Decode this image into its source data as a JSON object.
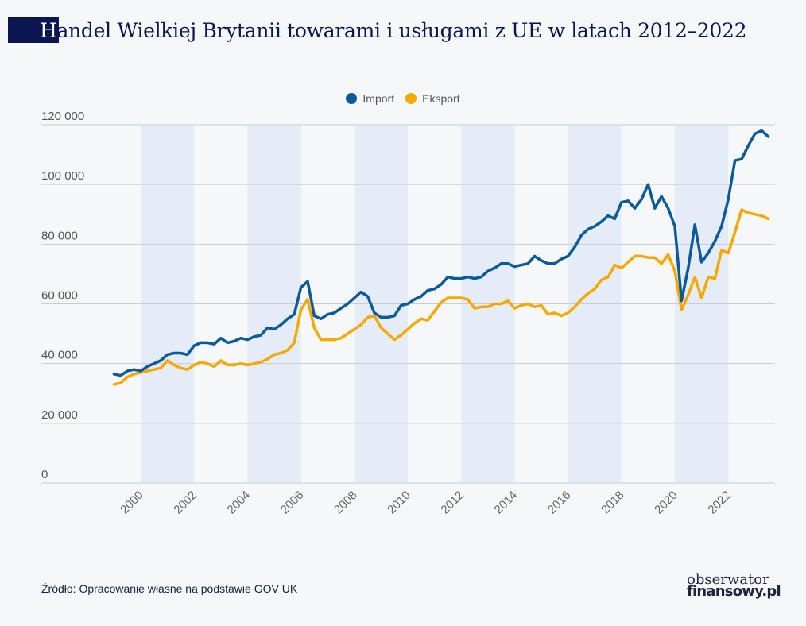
{
  "title": {
    "first_letter": "H",
    "rest": "andel Wielkiej Brytanii towarami i usługami z UE w latach 2012–2022"
  },
  "footer": {
    "source": "Źródło: Opracowanie własne na podstawie GOV UK"
  },
  "logo": {
    "line1": "obserwator",
    "line2": "finansowy.pl"
  },
  "chart_data": {
    "type": "line",
    "title": "",
    "xlabel": "",
    "ylabel": "",
    "ylim": [
      0,
      120000
    ],
    "xlim": [
      1999,
      2023.5
    ],
    "grid": true,
    "legend": "top-center",
    "yticks": [
      0,
      20000,
      40000,
      60000,
      80000,
      100000,
      120000
    ],
    "ytick_labels": [
      "0",
      "20 000",
      "40 000",
      "60 000",
      "80 000",
      "100 000",
      "120 000"
    ],
    "xticks": [
      2000,
      2002,
      2004,
      2006,
      2008,
      2010,
      2012,
      2014,
      2016,
      2018,
      2020,
      2022
    ],
    "xtick_labels": [
      "2000",
      "2002",
      "2004",
      "2006",
      "2008",
      "2010",
      "2012",
      "2014",
      "2016",
      "2018",
      "2020",
      "2022"
    ],
    "shaded_bands": [
      [
        2000,
        2002
      ],
      [
        2004,
        2006
      ],
      [
        2008,
        2010
      ],
      [
        2012,
        2014
      ],
      [
        2016,
        2018
      ],
      [
        2020,
        2022
      ]
    ],
    "x": [
      1999.0,
      1999.25,
      1999.5,
      1999.75,
      2000.0,
      2000.25,
      2000.5,
      2000.75,
      2001.0,
      2001.25,
      2001.5,
      2001.75,
      2002.0,
      2002.25,
      2002.5,
      2002.75,
      2003.0,
      2003.25,
      2003.5,
      2003.75,
      2004.0,
      2004.25,
      2004.5,
      2004.75,
      2005.0,
      2005.25,
      2005.5,
      2005.75,
      2006.0,
      2006.25,
      2006.5,
      2006.75,
      2007.0,
      2007.25,
      2007.5,
      2007.75,
      2008.0,
      2008.25,
      2008.5,
      2008.75,
      2009.0,
      2009.25,
      2009.5,
      2009.75,
      2010.0,
      2010.25,
      2010.5,
      2010.75,
      2011.0,
      2011.25,
      2011.5,
      2011.75,
      2012.0,
      2012.25,
      2012.5,
      2012.75,
      2013.0,
      2013.25,
      2013.5,
      2013.75,
      2014.0,
      2014.25,
      2014.5,
      2014.75,
      2015.0,
      2015.25,
      2015.5,
      2015.75,
      2016.0,
      2016.25,
      2016.5,
      2016.75,
      2017.0,
      2017.25,
      2017.5,
      2017.75,
      2018.0,
      2018.25,
      2018.5,
      2018.75,
      2019.0,
      2019.25,
      2019.5,
      2019.75,
      2020.0,
      2020.25,
      2020.5,
      2020.75,
      2021.0,
      2021.25,
      2021.5,
      2021.75,
      2022.0,
      2022.25,
      2022.5,
      2022.75,
      2023.0,
      2023.25,
      2023.5
    ],
    "series": [
      {
        "name": "Import",
        "color": "#0a5a9c",
        "values": [
          36500,
          36000,
          37500,
          38000,
          37500,
          39000,
          40000,
          41000,
          43000,
          43500,
          43500,
          43000,
          46000,
          47000,
          47000,
          46500,
          48500,
          47000,
          47500,
          48500,
          48000,
          49000,
          49500,
          52000,
          51500,
          53000,
          55000,
          56500,
          65500,
          67500,
          56000,
          55000,
          56500,
          57000,
          58500,
          60000,
          62000,
          64000,
          62500,
          57000,
          55500,
          55500,
          56000,
          59500,
          60000,
          61500,
          62500,
          64500,
          65000,
          66500,
          69000,
          68500,
          68500,
          69000,
          68500,
          69000,
          71000,
          72000,
          73500,
          73500,
          72500,
          73000,
          73500,
          76000,
          74500,
          73500,
          73500,
          75000,
          76000,
          79000,
          83000,
          85000,
          86000,
          87500,
          89500,
          88500,
          94000,
          94500,
          92000,
          95000,
          100000,
          92000,
          96000,
          92000,
          86000,
          61000,
          72000,
          86500,
          74000,
          77000,
          81000,
          86000,
          95000,
          108000,
          108500,
          113000,
          117000,
          118000,
          116000
        ]
      },
      {
        "name": "Eksport",
        "color": "#f5a800",
        "values": [
          33000,
          33500,
          35500,
          36500,
          37000,
          37500,
          38000,
          38500,
          41000,
          39500,
          38500,
          38000,
          39500,
          40500,
          40000,
          39000,
          41000,
          39500,
          39500,
          40000,
          39500,
          40000,
          40500,
          41500,
          43000,
          43500,
          44500,
          47000,
          58000,
          61500,
          52000,
          48000,
          48000,
          48000,
          48500,
          50000,
          51500,
          53000,
          55500,
          56000,
          52000,
          50000,
          48000,
          49500,
          51500,
          53500,
          55000,
          54500,
          57500,
          60500,
          62000,
          62000,
          62000,
          61500,
          58500,
          59000,
          59000,
          60000,
          60000,
          61000,
          58500,
          59500,
          60000,
          59000,
          59500,
          56500,
          57000,
          56000,
          57000,
          59000,
          61500,
          63500,
          65000,
          68000,
          69000,
          73000,
          72000,
          74000,
          76000,
          76000,
          75500,
          75500,
          73500,
          76500,
          71000,
          58000,
          63000,
          69000,
          62000,
          69000,
          68500,
          78000,
          77000,
          84000,
          91500,
          90500,
          90000,
          89500,
          88500
        ]
      }
    ]
  }
}
